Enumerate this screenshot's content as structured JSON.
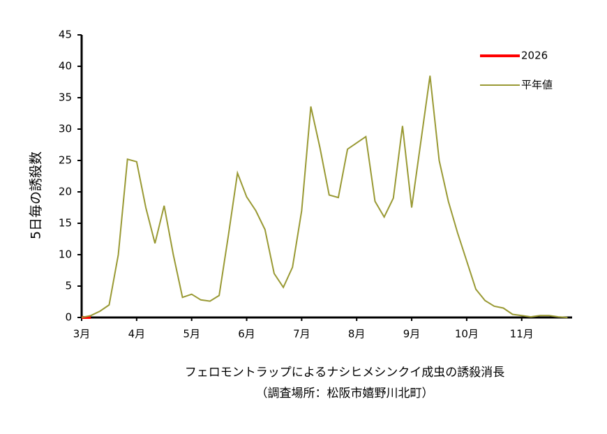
{
  "chart_data": {
    "type": "line",
    "y_label": "5日毎の誘殺数",
    "caption": [
      "フェロモントラップによるナシヒメシンクイ成虫の誘殺消長",
      "（調査場所：松阪市嬉野川北町）"
    ],
    "x": [
      0,
      1,
      2,
      3,
      4,
      5,
      6,
      7,
      8,
      9,
      10,
      11,
      12,
      13,
      14,
      15,
      16,
      17,
      18,
      19,
      20,
      21,
      22,
      23,
      24,
      25,
      26,
      27,
      28,
      29,
      30,
      31,
      32,
      33,
      34,
      35,
      36,
      37,
      38,
      39,
      40,
      41,
      42,
      43,
      44,
      45,
      46,
      47,
      48,
      49,
      50,
      51,
      52,
      53
    ],
    "xlim": [
      0,
      53.5
    ],
    "xticks": [
      {
        "value": 0,
        "label": "3月"
      },
      {
        "value": 6,
        "label": "4月"
      },
      {
        "value": 12,
        "label": "5月"
      },
      {
        "value": 18,
        "label": "6月"
      },
      {
        "value": 24,
        "label": "7月"
      },
      {
        "value": 30,
        "label": "8月"
      },
      {
        "value": 36,
        "label": "9月"
      },
      {
        "value": 42,
        "label": "10月"
      },
      {
        "value": 48,
        "label": "11月"
      }
    ],
    "ylim": [
      0,
      45
    ],
    "yticks": [
      0,
      5,
      10,
      15,
      20,
      25,
      30,
      35,
      40,
      45
    ],
    "legend_position": "upper right",
    "series": [
      {
        "name": "2026",
        "color": "#ff0000",
        "values": [
          0,
          0,
          null,
          null,
          null,
          null,
          null,
          null,
          null,
          null,
          null,
          null,
          null,
          null,
          null,
          null,
          null,
          null,
          null,
          null,
          null,
          null,
          null,
          null,
          null,
          null,
          null,
          null,
          null,
          null,
          null,
          null,
          null,
          null,
          null,
          null,
          null,
          null,
          null,
          null,
          null,
          null,
          null,
          null,
          null,
          null,
          null,
          null,
          null,
          null,
          null,
          null,
          null,
          null
        ]
      },
      {
        "name": "平年値",
        "color": "#999933",
        "values": [
          0,
          0.3,
          1,
          2,
          10,
          25.2,
          24.8,
          17.5,
          11.8,
          17.8,
          10,
          3.2,
          3.7,
          2.8,
          2.6,
          3.5,
          13,
          23,
          19.2,
          17,
          14,
          7,
          4.8,
          8,
          17,
          33.6,
          27,
          19.5,
          19.1,
          26.8,
          27.8,
          28.8,
          18.5,
          16,
          19,
          30.5,
          17.5,
          28,
          38.5,
          25,
          18.5,
          13.5,
          9,
          4.5,
          2.7,
          1.8,
          1.5,
          0.5,
          0.3,
          0.1,
          0.3,
          0.3,
          0.1,
          0
        ]
      }
    ]
  }
}
